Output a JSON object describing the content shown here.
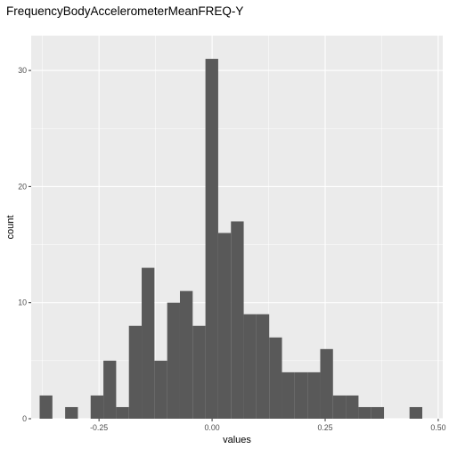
{
  "chart_data": {
    "type": "bar",
    "title": "FrequencyBodyAccelerometerMeanFREQ-Y",
    "xlabel": "values",
    "ylabel": "count",
    "xlim": [
      -0.4,
      0.51
    ],
    "ylim": [
      0,
      33
    ],
    "x_ticks": [
      {
        "value": -0.25,
        "label": "-0.25"
      },
      {
        "value": 0,
        "label": "0.00"
      },
      {
        "value": 0.25,
        "label": "0.25"
      },
      {
        "value": 0.5,
        "label": "0.50"
      }
    ],
    "y_ticks": [
      {
        "value": 0,
        "label": "0"
      },
      {
        "value": 10,
        "label": "10"
      },
      {
        "value": 20,
        "label": "20"
      },
      {
        "value": 30,
        "label": "30"
      }
    ],
    "bin_width": 0.0282,
    "bins": [
      {
        "center": -0.3672,
        "count": 2
      },
      {
        "center": -0.339,
        "count": 0
      },
      {
        "center": -0.3108,
        "count": 1
      },
      {
        "center": -0.2826,
        "count": 0
      },
      {
        "center": -0.2544,
        "count": 2
      },
      {
        "center": -0.2262,
        "count": 5
      },
      {
        "center": -0.198,
        "count": 1
      },
      {
        "center": -0.1698,
        "count": 8
      },
      {
        "center": -0.1416,
        "count": 13
      },
      {
        "center": -0.1134,
        "count": 5
      },
      {
        "center": -0.0852,
        "count": 10
      },
      {
        "center": -0.057,
        "count": 11
      },
      {
        "center": -0.0288,
        "count": 8
      },
      {
        "center": -0.0006,
        "count": 31
      },
      {
        "center": 0.0276,
        "count": 16
      },
      {
        "center": 0.0558,
        "count": 17
      },
      {
        "center": 0.084,
        "count": 9
      },
      {
        "center": 0.1122,
        "count": 9
      },
      {
        "center": 0.1404,
        "count": 7
      },
      {
        "center": 0.1686,
        "count": 4
      },
      {
        "center": 0.1968,
        "count": 4
      },
      {
        "center": 0.225,
        "count": 4
      },
      {
        "center": 0.2532,
        "count": 6
      },
      {
        "center": 0.2814,
        "count": 2
      },
      {
        "center": 0.3096,
        "count": 2
      },
      {
        "center": 0.3378,
        "count": 1
      },
      {
        "center": 0.366,
        "count": 1
      },
      {
        "center": 0.3942,
        "count": 0
      },
      {
        "center": 0.4224,
        "count": 0
      },
      {
        "center": 0.4506,
        "count": 1
      }
    ],
    "bar_color": "#595959",
    "panel_color": "#ebebeb",
    "grid_color": "#ffffff",
    "grid": true
  }
}
